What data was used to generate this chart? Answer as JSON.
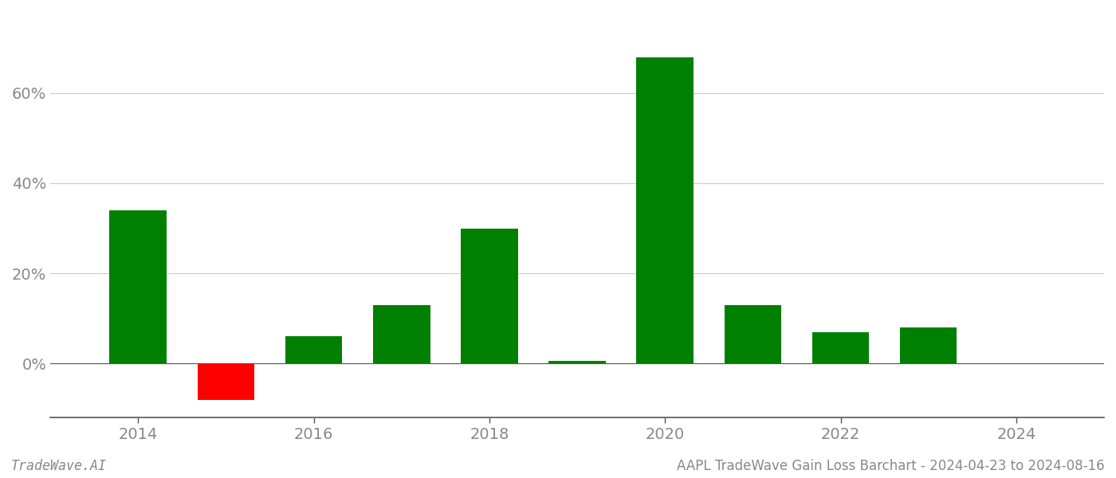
{
  "years": [
    2014,
    2015,
    2016,
    2017,
    2018,
    2019,
    2020,
    2021,
    2022,
    2023
  ],
  "values": [
    34.0,
    -8.0,
    6.0,
    13.0,
    30.0,
    0.5,
    68.0,
    13.0,
    7.0,
    8.0
  ],
  "positive_color": "#008000",
  "negative_color": "#ff0000",
  "background_color": "#ffffff",
  "grid_color": "#cccccc",
  "axis_color": "#555555",
  "tick_label_color": "#888888",
  "bar_width": 0.65,
  "ylim_min": -12,
  "ylim_max": 78,
  "yticks": [
    0,
    20,
    40,
    60
  ],
  "ytick_labels": [
    "0%",
    "20%",
    "40%",
    "60%"
  ],
  "xtick_labels": [
    "2014",
    "2016",
    "2018",
    "2020",
    "2022",
    "2024"
  ],
  "xtick_positions": [
    2014,
    2016,
    2018,
    2020,
    2022,
    2024
  ],
  "footer_left": "TradeWave.AI",
  "footer_right": "AAPL TradeWave Gain Loss Barchart - 2024-04-23 to 2024-08-16",
  "footer_fontsize": 12,
  "tick_fontsize": 14
}
